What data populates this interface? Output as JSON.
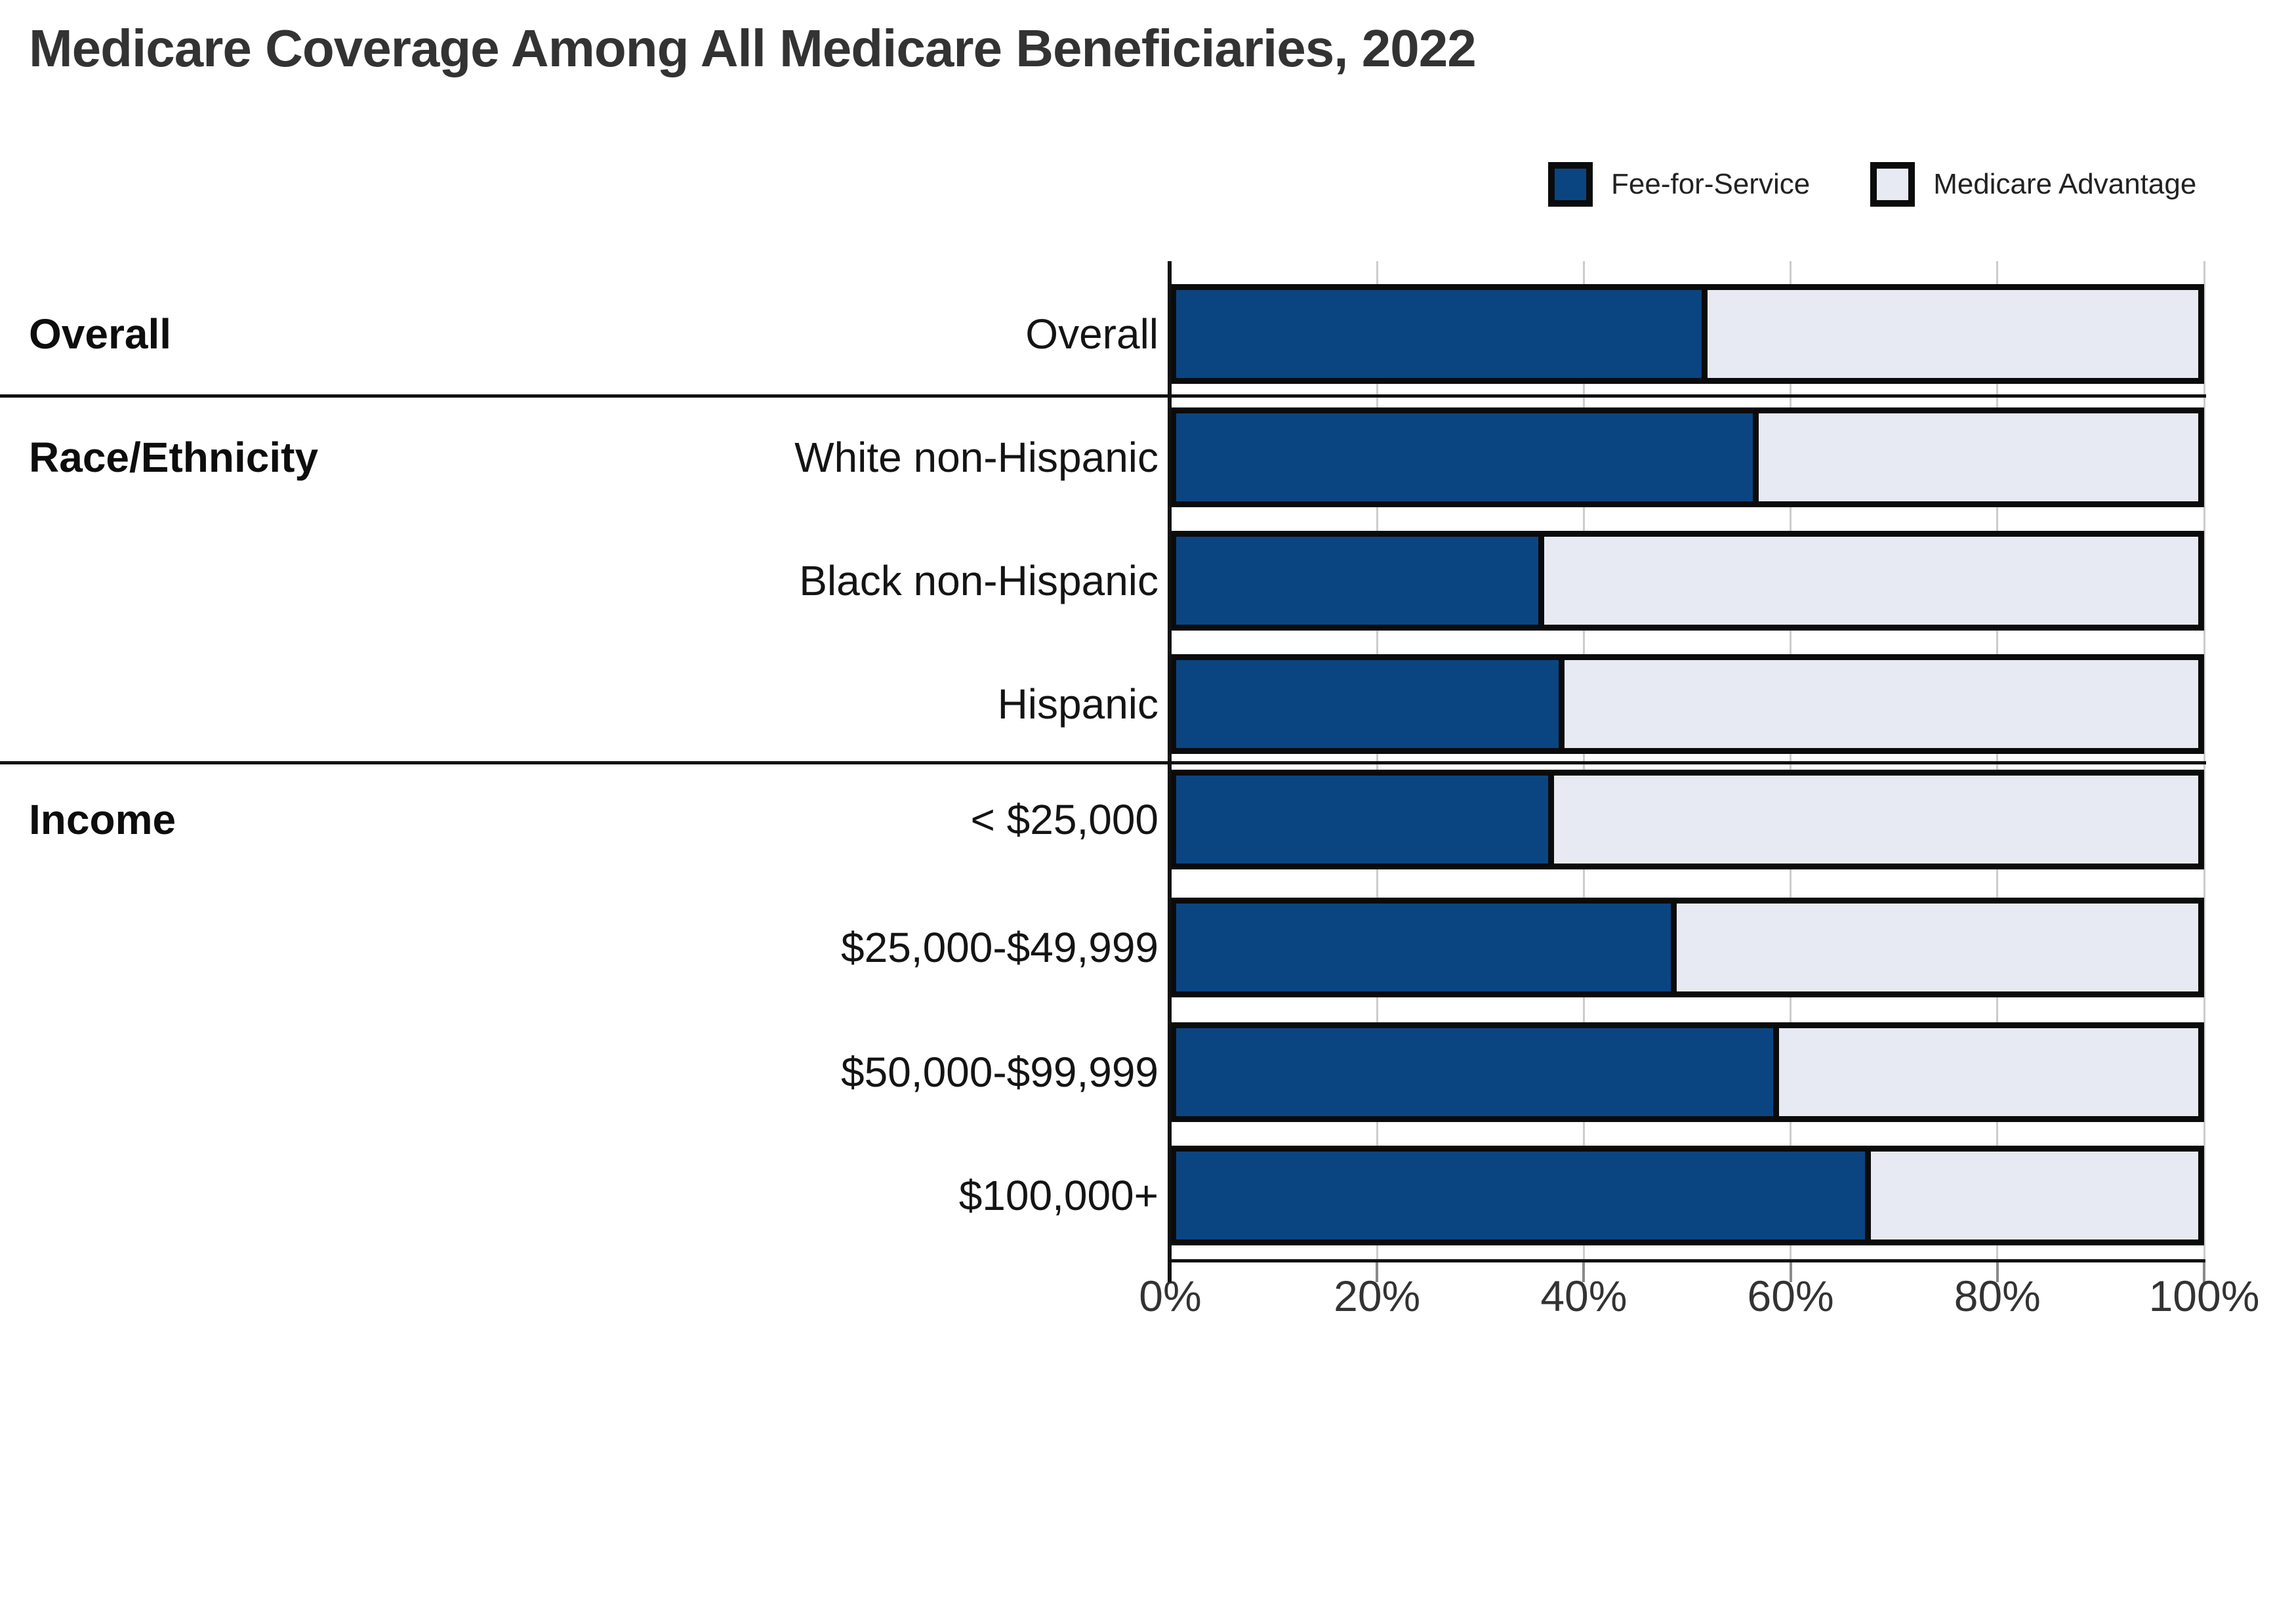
{
  "title": "Medicare Coverage Among All Medicare Beneficiaries, 2022",
  "legend": {
    "items": [
      {
        "label": "Fee-for-Service",
        "color": "#0b4581"
      },
      {
        "label": "Medicare Advantage",
        "color": "#e7eaf2"
      }
    ]
  },
  "colors": {
    "fee_for_service": "#0b4581",
    "medicare_advantage": "#e7eaf2",
    "bar_border": "#0b0b0b",
    "gridline": "#cccccc",
    "axis": "#111111",
    "title_text": "#333333",
    "label_text": "#141414"
  },
  "chart_data": {
    "type": "bar",
    "stacked": true,
    "orientation": "horizontal",
    "title": "Medicare Coverage Among All Medicare Beneficiaries, 2022",
    "categories": [
      "Overall",
      "White non-Hispanic",
      "Black non-Hispanic",
      "Hispanic",
      "< $25,000",
      "$25,000-$49,999",
      "$50,000-$99,999",
      "$100,000+"
    ],
    "groups": [
      {
        "label": "Overall",
        "start_index": 0,
        "count": 1
      },
      {
        "label": "Race/Ethnicity",
        "start_index": 1,
        "count": 3
      },
      {
        "label": "Income",
        "start_index": 4,
        "count": 4
      }
    ],
    "series": [
      {
        "name": "Fee-for-Service",
        "color": "#0b4581",
        "values": [
          52,
          57,
          36,
          38,
          37,
          49,
          59,
          68
        ]
      },
      {
        "name": "Medicare Advantage",
        "color": "#e7eaf2",
        "values": [
          48,
          43,
          64,
          62,
          63,
          51,
          41,
          32
        ]
      }
    ],
    "xlim": [
      0,
      100
    ],
    "x_ticks": [
      {
        "value": 0,
        "label": "0%"
      },
      {
        "value": 20,
        "label": "20%"
      },
      {
        "value": 40,
        "label": "40%"
      },
      {
        "value": 60,
        "label": "60%"
      },
      {
        "value": 80,
        "label": "80%"
      },
      {
        "value": 100,
        "label": "100%"
      }
    ],
    "grid": true,
    "legend_position": "top-right"
  }
}
